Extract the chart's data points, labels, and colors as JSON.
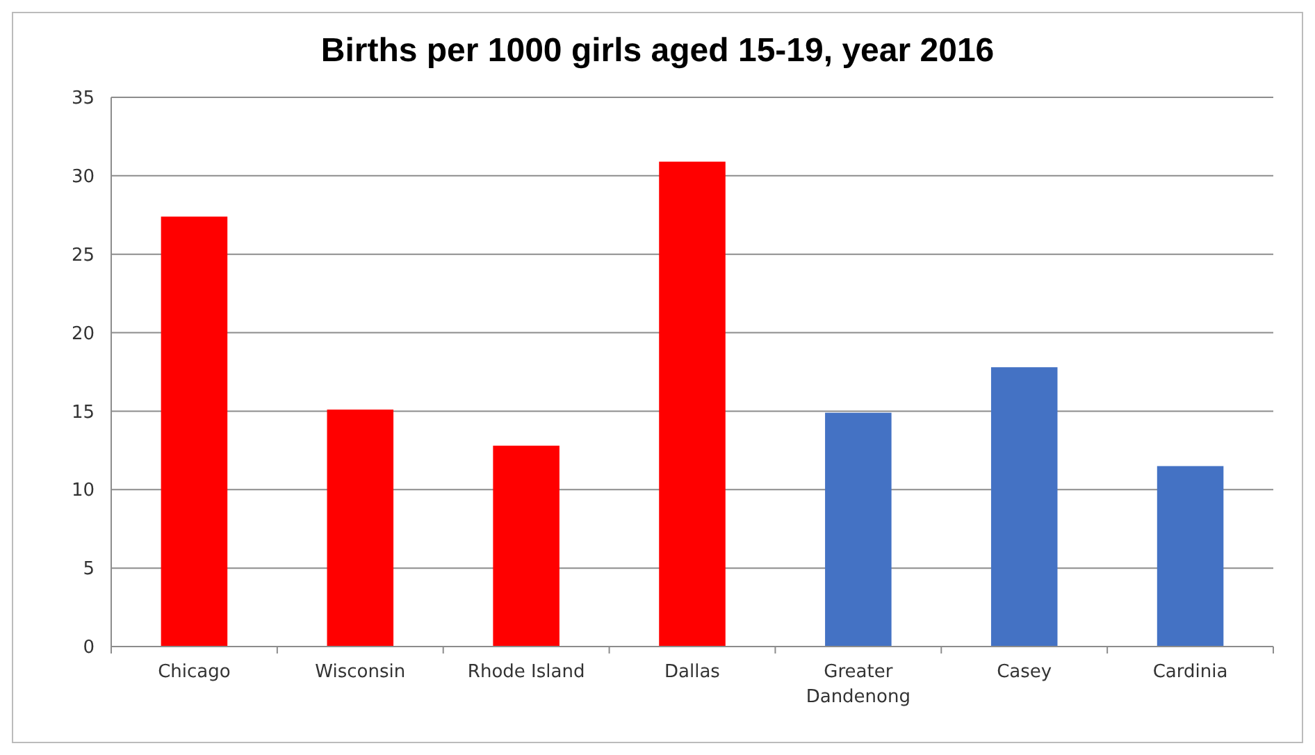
{
  "chart_data": {
    "type": "bar",
    "title": "Births per 1000 girls aged 15-19, year 2016",
    "categories": [
      "Chicago",
      "Wisconsin",
      "Rhode Island",
      "Dallas",
      "Greater Dandenong",
      "Casey",
      "Cardinia"
    ],
    "values": [
      27.4,
      15.1,
      12.8,
      30.9,
      14.9,
      17.8,
      11.5
    ],
    "colors": [
      "#ff0000",
      "#ff0000",
      "#ff0000",
      "#ff0000",
      "#4472c4",
      "#4472c4",
      "#4472c4"
    ],
    "ylim": [
      0,
      35
    ],
    "yticks": [
      0,
      5,
      10,
      15,
      20,
      25,
      30,
      35
    ],
    "grid": "y"
  }
}
